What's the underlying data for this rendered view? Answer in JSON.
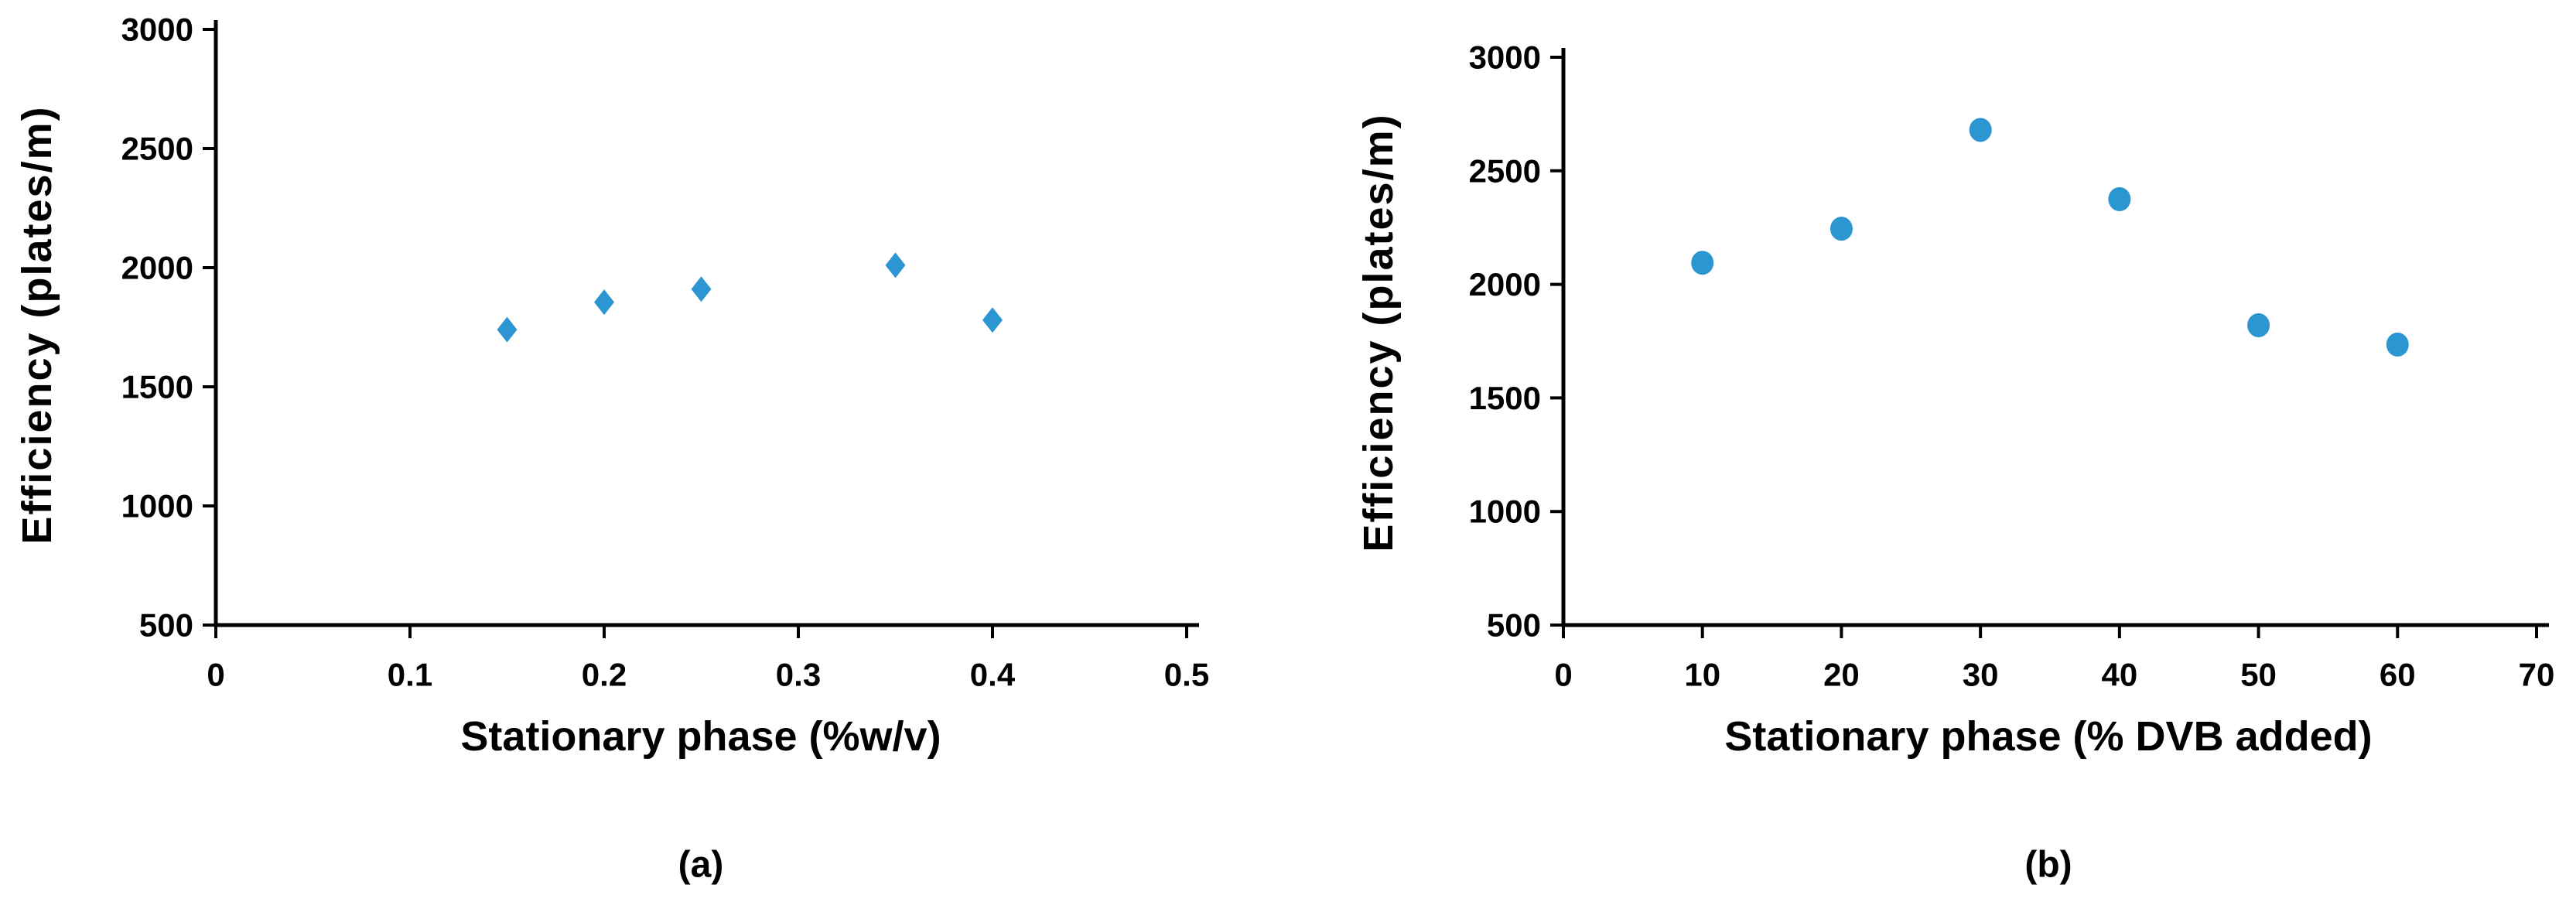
{
  "figure": {
    "marker_color": "#2B96D2",
    "axis_color": "#000000",
    "text_color": "#000000",
    "background_color": "#ffffff"
  },
  "chart_data": [
    {
      "id": "a",
      "type": "scatter",
      "marker": "diamond",
      "caption": "(a)",
      "xlabel": "Stationary phase (%w/v)",
      "ylabel": "Efficiency (plates/m)",
      "x": [
        0.15,
        0.2,
        0.25,
        0.35,
        0.4
      ],
      "y": [
        1740,
        1855,
        1910,
        2010,
        1780
      ],
      "xlim": [
        0,
        0.5
      ],
      "ylim": [
        500,
        3000
      ],
      "x_tick_values": [
        0,
        0.1,
        0.2,
        0.3,
        0.4,
        0.5
      ],
      "x_tick_labels": [
        "0",
        "0.1",
        "0.2",
        "0.3",
        "0.4",
        "0.5"
      ],
      "y_tick_values": [
        500,
        1000,
        1500,
        2000,
        2500,
        3000
      ],
      "y_tick_labels": [
        "500",
        "1000",
        "1500",
        "2000",
        "2500",
        "3000"
      ],
      "grid": false,
      "legend": "none"
    },
    {
      "id": "b",
      "type": "scatter",
      "marker": "circle",
      "caption": "(b)",
      "xlabel": "Stationary phase (% DVB added)",
      "ylabel": "Efficiency (plates/m)",
      "x": [
        10,
        20,
        30,
        40,
        50,
        60
      ],
      "y": [
        2095,
        2245,
        2680,
        2375,
        1820,
        1735
      ],
      "xlim": [
        0,
        70
      ],
      "ylim": [
        500,
        3000
      ],
      "x_tick_values": [
        0,
        10,
        20,
        30,
        40,
        50,
        60,
        70
      ],
      "x_tick_labels": [
        "0",
        "10",
        "20",
        "30",
        "40",
        "50",
        "60",
        "70"
      ],
      "y_tick_values": [
        500,
        1000,
        1500,
        2000,
        2500,
        3000
      ],
      "y_tick_labels": [
        "500",
        "1000",
        "1500",
        "2000",
        "2500",
        "3000"
      ],
      "grid": false,
      "legend": "none"
    }
  ]
}
